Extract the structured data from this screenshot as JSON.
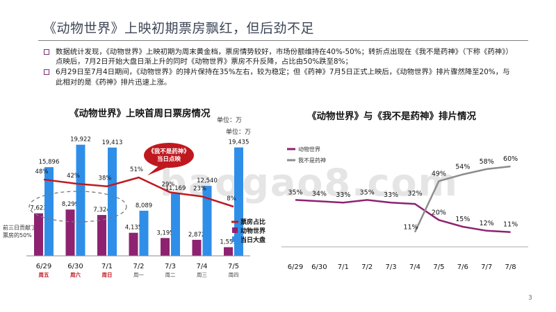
{
  "slide": {
    "title": "《动物世界》上映初期票房飘红，但后劲不足",
    "bullets": [
      "数据统计发现，《动物世界》上映初期为周末黄金档，票房情势较好，市场份额维持在40%-50%；转折点出现在《我不是药神》（下称《药神》）点映后，7月2日开始大盘日渐上升的同时《动物世界》票房不升反降，占比由50%跌至8%；",
      "6月29日至7月4日期间，《动物世界》的排片保持在35%左右，较为稳定；但《药神》7月5日正式上映后，《动物世界》排片骤然降至20%，与此相对的是《药神》排片迅速上涨。"
    ],
    "page_number": "3",
    "watermark": "baogao8.com",
    "note": "前三日贡献了单票房的50%",
    "callout": "《我不是药神》当日点映"
  },
  "chart_data": [
    {
      "type": "bar",
      "title": "《动物世界》上映首周日票房情况",
      "unit_label_1": "单位：万",
      "unit_label_2": "单位：万",
      "categories": [
        "6/29",
        "6/30",
        "7/1",
        "7/2",
        "7/3",
        "7/4",
        "7/5"
      ],
      "weekdays": [
        "周五",
        "周六",
        "周日",
        "周一",
        "周二",
        "周三",
        "周四"
      ],
      "weekday_highlight": [
        true,
        true,
        true,
        false,
        false,
        false,
        false
      ],
      "series": [
        {
          "name": "动物世界",
          "values": [
            7623,
            8299,
            7324,
            4135,
            3195,
            2872,
            1553
          ],
          "color": "#8e2270"
        },
        {
          "name": "当日大盘",
          "values": [
            15896,
            19922,
            19413,
            8089,
            11169,
            12540,
            19435
          ],
          "color": "#2f8fe8"
        }
      ],
      "line_series": {
        "name": "票房占比",
        "values": [
          48,
          42,
          38,
          51,
          29,
          23,
          8
        ],
        "labels": [
          "48%",
          "42%",
          "38%",
          "51%",
          "29%",
          "23%",
          "8%"
        ],
        "color": "#c0181f"
      },
      "ylim": [
        0,
        22000
      ]
    },
    {
      "type": "line",
      "title": "《动物世界》与《我不是药神》排片情况",
      "categories": [
        "6/29",
        "6/30",
        "7/1",
        "7/2",
        "7/3",
        "7/4",
        "7/5",
        "7/6",
        "7/7",
        "7/8"
      ],
      "series": [
        {
          "name": "动物世界",
          "values": [
            35,
            34,
            33,
            35,
            33,
            32,
            20,
            15,
            12,
            11
          ],
          "labels": [
            "35%",
            "34%",
            "33%",
            "35%",
            "33%",
            "32%",
            "20%",
            "15%",
            "12%",
            "11%"
          ],
          "color": "#8e2270"
        },
        {
          "name": "我不是药神",
          "values": [
            null,
            null,
            null,
            null,
            null,
            11,
            49,
            54,
            58,
            60
          ],
          "labels": [
            "",
            "",
            "",
            "",
            "",
            "11%",
            "49%",
            "54%",
            "58%",
            "60%"
          ],
          "color": "#8c8c8c"
        }
      ],
      "ylim": [
        0,
        70
      ]
    }
  ]
}
